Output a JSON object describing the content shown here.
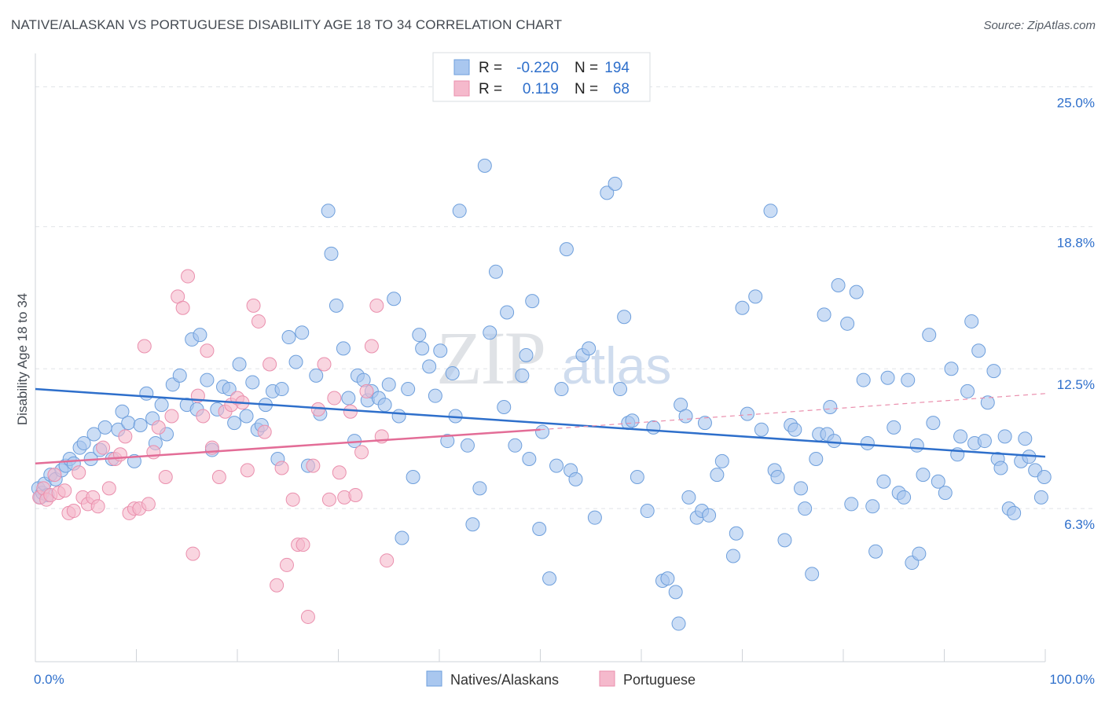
{
  "chart_data": {
    "type": "scatter",
    "title": "NATIVE/ALASKAN VS PORTUGUESE DISABILITY AGE 18 TO 34 CORRELATION CHART",
    "source": "Source: ZipAtlas.com",
    "ylabel": "Disability Age 18 to 34",
    "xlim": [
      0,
      100
    ],
    "ylim": [
      0,
      26.2
    ],
    "x_tick_labels": [
      "0.0%",
      "100.0%"
    ],
    "y_ticks": [
      {
        "value": 6.3,
        "label": "6.3%"
      },
      {
        "value": 12.5,
        "label": "12.5%"
      },
      {
        "value": 18.8,
        "label": "18.8%"
      },
      {
        "value": 25.0,
        "label": "25.0%"
      }
    ],
    "grid": true,
    "legend_position": "top-center",
    "watermark": "ZIPatlas",
    "colors": {
      "natives_fill": "#a9c7ef",
      "natives_stroke": "#6e9fdc",
      "natives_line": "#2e6fcb",
      "portuguese_fill": "#f5b9cc",
      "portuguese_stroke": "#ea8fad",
      "portuguese_line": "#e36d97",
      "value_text": "#2e6fcb"
    },
    "stats": [
      {
        "r_label": "R =",
        "r": "-0.220",
        "n_label": "N =",
        "n": "194"
      },
      {
        "r_label": "R =",
        "r": "0.119",
        "n_label": "N =",
        "n": "68"
      }
    ],
    "series": [
      {
        "name": "Natives/Alaskans",
        "trend": {
          "x": [
            0,
            100
          ],
          "y": [
            11.6,
            8.6
          ]
        },
        "points": [
          [
            0.3,
            7.2
          ],
          [
            0.5,
            6.8
          ],
          [
            0.7,
            7.0
          ],
          [
            0.9,
            7.4
          ],
          [
            1.2,
            6.9
          ],
          [
            1.5,
            7.8
          ],
          [
            2.0,
            7.6
          ],
          [
            2.6,
            8.0
          ],
          [
            3.0,
            8.2
          ],
          [
            3.4,
            8.5
          ],
          [
            3.8,
            8.3
          ],
          [
            4.4,
            9.0
          ],
          [
            4.8,
            9.2
          ],
          [
            5.5,
            8.5
          ],
          [
            5.8,
            9.6
          ],
          [
            6.4,
            8.9
          ],
          [
            6.9,
            9.9
          ],
          [
            7.6,
            8.5
          ],
          [
            8.2,
            9.8
          ],
          [
            8.6,
            10.6
          ],
          [
            9.2,
            10.1
          ],
          [
            9.8,
            8.4
          ],
          [
            10.4,
            10.0
          ],
          [
            11.0,
            11.4
          ],
          [
            11.6,
            10.3
          ],
          [
            11.9,
            9.2
          ],
          [
            12.5,
            10.9
          ],
          [
            13.0,
            9.6
          ],
          [
            13.6,
            11.8
          ],
          [
            14.3,
            12.2
          ],
          [
            15.0,
            10.9
          ],
          [
            15.5,
            13.8
          ],
          [
            16.0,
            10.7
          ],
          [
            16.3,
            14.0
          ],
          [
            17.0,
            12.0
          ],
          [
            17.5,
            8.9
          ],
          [
            18.0,
            10.7
          ],
          [
            18.6,
            11.7
          ],
          [
            19.2,
            11.6
          ],
          [
            19.7,
            10.1
          ],
          [
            20.2,
            12.7
          ],
          [
            20.9,
            10.4
          ],
          [
            21.5,
            11.9
          ],
          [
            22.0,
            9.8
          ],
          [
            22.4,
            10.0
          ],
          [
            22.8,
            10.9
          ],
          [
            23.5,
            11.5
          ],
          [
            24.0,
            8.5
          ],
          [
            24.4,
            11.6
          ],
          [
            25.1,
            13.9
          ],
          [
            25.8,
            12.8
          ],
          [
            26.4,
            14.1
          ],
          [
            27.0,
            8.2
          ],
          [
            27.8,
            12.2
          ],
          [
            28.2,
            10.5
          ],
          [
            29.0,
            19.5
          ],
          [
            29.3,
            17.6
          ],
          [
            29.8,
            15.3
          ],
          [
            30.5,
            13.4
          ],
          [
            31.0,
            11.2
          ],
          [
            31.6,
            9.3
          ],
          [
            31.9,
            12.2
          ],
          [
            32.5,
            12.0
          ],
          [
            32.9,
            11.1
          ],
          [
            33.3,
            11.5
          ],
          [
            34.0,
            11.2
          ],
          [
            34.6,
            10.9
          ],
          [
            35.0,
            11.8
          ],
          [
            35.5,
            15.6
          ],
          [
            36.0,
            10.4
          ],
          [
            36.3,
            5.0
          ],
          [
            36.9,
            11.6
          ],
          [
            37.4,
            7.7
          ],
          [
            38.0,
            14.0
          ],
          [
            38.3,
            13.4
          ],
          [
            39.0,
            12.6
          ],
          [
            39.6,
            11.3
          ],
          [
            40.1,
            13.3
          ],
          [
            40.8,
            9.3
          ],
          [
            41.3,
            12.3
          ],
          [
            41.6,
            10.4
          ],
          [
            42.0,
            19.5
          ],
          [
            42.8,
            9.1
          ],
          [
            43.3,
            5.6
          ],
          [
            44.0,
            7.2
          ],
          [
            44.5,
            21.5
          ],
          [
            45.0,
            14.1
          ],
          [
            45.6,
            16.8
          ],
          [
            46.4,
            10.8
          ],
          [
            46.7,
            15.0
          ],
          [
            47.5,
            9.1
          ],
          [
            48.2,
            12.2
          ],
          [
            48.6,
            13.1
          ],
          [
            48.9,
            8.5
          ],
          [
            49.2,
            15.5
          ],
          [
            49.9,
            5.4
          ],
          [
            50.2,
            9.7
          ],
          [
            50.9,
            3.2
          ],
          [
            51.6,
            8.2
          ],
          [
            52.1,
            11.6
          ],
          [
            52.6,
            17.8
          ],
          [
            53.0,
            8.0
          ],
          [
            53.5,
            7.6
          ],
          [
            54.2,
            13.1
          ],
          [
            54.8,
            13.4
          ],
          [
            55.4,
            5.9
          ],
          [
            56.6,
            20.3
          ],
          [
            57.4,
            20.7
          ],
          [
            57.9,
            11.6
          ],
          [
            58.3,
            14.8
          ],
          [
            58.7,
            10.1
          ],
          [
            59.1,
            10.2
          ],
          [
            59.6,
            7.7
          ],
          [
            60.6,
            6.2
          ],
          [
            61.2,
            9.9
          ],
          [
            62.1,
            3.1
          ],
          [
            62.6,
            3.2
          ],
          [
            63.4,
            2.6
          ],
          [
            63.7,
            1.2
          ],
          [
            63.9,
            10.9
          ],
          [
            64.4,
            10.4
          ],
          [
            64.7,
            6.8
          ],
          [
            65.5,
            5.9
          ],
          [
            66.0,
            6.2
          ],
          [
            66.3,
            10.1
          ],
          [
            66.7,
            6.0
          ],
          [
            67.5,
            7.8
          ],
          [
            68.0,
            8.4
          ],
          [
            69.1,
            4.2
          ],
          [
            69.4,
            5.2
          ],
          [
            70.0,
            15.2
          ],
          [
            70.5,
            10.5
          ],
          [
            71.3,
            15.7
          ],
          [
            71.9,
            9.8
          ],
          [
            72.8,
            19.5
          ],
          [
            73.2,
            8.0
          ],
          [
            73.5,
            7.7
          ],
          [
            74.2,
            4.9
          ],
          [
            74.8,
            10.0
          ],
          [
            75.2,
            9.8
          ],
          [
            75.8,
            7.2
          ],
          [
            76.2,
            6.3
          ],
          [
            76.9,
            3.4
          ],
          [
            77.3,
            8.5
          ],
          [
            77.6,
            9.6
          ],
          [
            78.1,
            14.9
          ],
          [
            78.4,
            9.6
          ],
          [
            78.7,
            10.8
          ],
          [
            79.1,
            9.3
          ],
          [
            79.5,
            16.2
          ],
          [
            80.4,
            14.5
          ],
          [
            80.8,
            6.5
          ],
          [
            81.3,
            15.9
          ],
          [
            82.0,
            12.0
          ],
          [
            82.4,
            9.2
          ],
          [
            82.9,
            6.4
          ],
          [
            83.2,
            4.4
          ],
          [
            84.0,
            7.5
          ],
          [
            84.4,
            12.1
          ],
          [
            85.0,
            9.9
          ],
          [
            85.5,
            7.0
          ],
          [
            86.0,
            6.8
          ],
          [
            86.4,
            12.0
          ],
          [
            86.8,
            3.9
          ],
          [
            87.3,
            9.1
          ],
          [
            87.5,
            4.3
          ],
          [
            87.9,
            7.8
          ],
          [
            88.5,
            14.0
          ],
          [
            88.9,
            10.1
          ],
          [
            89.4,
            7.5
          ],
          [
            90.1,
            7.0
          ],
          [
            90.7,
            12.5
          ],
          [
            91.3,
            8.7
          ],
          [
            91.6,
            9.5
          ],
          [
            92.3,
            11.5
          ],
          [
            92.7,
            14.6
          ],
          [
            93.0,
            9.2
          ],
          [
            93.4,
            13.3
          ],
          [
            94.0,
            9.3
          ],
          [
            94.3,
            11.0
          ],
          [
            94.9,
            12.4
          ],
          [
            95.3,
            8.5
          ],
          [
            95.6,
            8.1
          ],
          [
            96.0,
            9.5
          ],
          [
            96.4,
            6.3
          ],
          [
            96.9,
            6.1
          ],
          [
            97.6,
            8.4
          ],
          [
            98.0,
            9.4
          ],
          [
            98.4,
            8.6
          ],
          [
            99.0,
            8.0
          ],
          [
            99.6,
            6.8
          ],
          [
            99.9,
            7.7
          ]
        ]
      },
      {
        "name": "Portuguese",
        "trend": {
          "x": [
            0,
            50
          ],
          "y": [
            8.3,
            9.8
          ]
        },
        "trend_ext": {
          "x": [
            50,
            100
          ],
          "y": [
            9.8,
            11.4
          ]
        },
        "points": [
          [
            0.4,
            6.8
          ],
          [
            0.8,
            7.2
          ],
          [
            1.1,
            6.7
          ],
          [
            1.5,
            6.9
          ],
          [
            1.9,
            7.8
          ],
          [
            2.3,
            7.0
          ],
          [
            2.9,
            7.1
          ],
          [
            3.3,
            6.1
          ],
          [
            3.8,
            6.2
          ],
          [
            4.3,
            7.9
          ],
          [
            4.7,
            6.8
          ],
          [
            5.2,
            6.5
          ],
          [
            5.7,
            6.8
          ],
          [
            6.2,
            6.4
          ],
          [
            6.7,
            9.0
          ],
          [
            7.3,
            7.2
          ],
          [
            7.9,
            8.5
          ],
          [
            8.4,
            8.7
          ],
          [
            8.9,
            9.5
          ],
          [
            9.3,
            6.1
          ],
          [
            9.8,
            6.3
          ],
          [
            10.3,
            6.3
          ],
          [
            10.8,
            13.5
          ],
          [
            11.2,
            6.5
          ],
          [
            11.7,
            8.8
          ],
          [
            12.2,
            9.9
          ],
          [
            12.9,
            7.7
          ],
          [
            13.5,
            10.4
          ],
          [
            14.1,
            15.7
          ],
          [
            14.6,
            15.2
          ],
          [
            15.1,
            16.6
          ],
          [
            15.6,
            4.3
          ],
          [
            16.1,
            11.3
          ],
          [
            16.6,
            10.4
          ],
          [
            17.0,
            13.3
          ],
          [
            17.5,
            9.0
          ],
          [
            18.2,
            7.7
          ],
          [
            18.8,
            10.6
          ],
          [
            19.4,
            10.9
          ],
          [
            20.0,
            11.2
          ],
          [
            20.5,
            11.0
          ],
          [
            21.0,
            8.0
          ],
          [
            21.6,
            15.3
          ],
          [
            22.1,
            14.6
          ],
          [
            22.7,
            9.7
          ],
          [
            23.2,
            12.7
          ],
          [
            23.9,
            2.9
          ],
          [
            24.4,
            8.1
          ],
          [
            24.9,
            3.8
          ],
          [
            25.5,
            6.7
          ],
          [
            26.0,
            4.7
          ],
          [
            26.5,
            4.7
          ],
          [
            27.0,
            1.5
          ],
          [
            27.5,
            8.2
          ],
          [
            28.0,
            10.7
          ],
          [
            28.6,
            12.7
          ],
          [
            29.1,
            6.7
          ],
          [
            29.6,
            11.2
          ],
          [
            30.1,
            7.9
          ],
          [
            30.6,
            6.8
          ],
          [
            31.2,
            10.6
          ],
          [
            31.7,
            6.9
          ],
          [
            32.3,
            8.8
          ],
          [
            32.8,
            11.5
          ],
          [
            33.3,
            13.5
          ],
          [
            33.8,
            15.3
          ],
          [
            34.3,
            9.5
          ],
          [
            34.8,
            4.0
          ]
        ]
      }
    ],
    "legend": [
      "Natives/Alaskans",
      "Portuguese"
    ]
  }
}
